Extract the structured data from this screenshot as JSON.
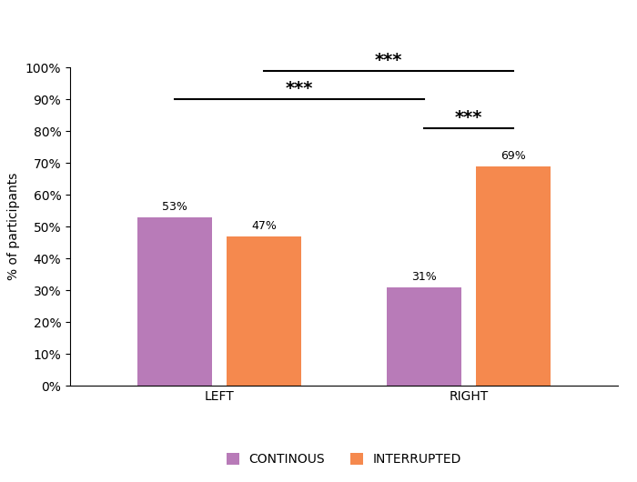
{
  "chart_data": {
    "type": "bar",
    "y_label": "% of participants",
    "categories": [
      "LEFT",
      "RIGHT"
    ],
    "series": [
      {
        "name": "CONTINOUS",
        "color": "#b87bb8",
        "values": [
          53,
          31
        ],
        "value_labels": [
          "53%",
          "31%"
        ]
      },
      {
        "name": "INTERRUPTED",
        "color": "#f5894e",
        "values": [
          47,
          69
        ],
        "value_labels": [
          "47%",
          "69%"
        ]
      }
    ],
    "ylim": [
      0,
      100
    ],
    "yticks": [
      {
        "value": 0,
        "label": "0%"
      },
      {
        "value": 10,
        "label": "10%"
      },
      {
        "value": 20,
        "label": "20%"
      },
      {
        "value": 30,
        "label": "30%"
      },
      {
        "value": 40,
        "label": "40%"
      },
      {
        "value": 50,
        "label": "50%"
      },
      {
        "value": 60,
        "label": "60%"
      },
      {
        "value": 70,
        "label": "70%"
      },
      {
        "value": 80,
        "label": "80%"
      },
      {
        "value": 90,
        "label": "90%"
      },
      {
        "value": 100,
        "label": "100%"
      }
    ],
    "grid": false,
    "data_labels": true,
    "legend": "bottom",
    "annotations": [
      {
        "text": "***",
        "between": [
          {
            "category": "RIGHT",
            "series": "CONTINOUS"
          },
          {
            "category": "RIGHT",
            "series": "INTERRUPTED"
          }
        ]
      },
      {
        "text": "***",
        "between": [
          {
            "category": "LEFT",
            "series": "CONTINOUS"
          },
          {
            "category": "RIGHT",
            "series": "CONTINOUS"
          }
        ]
      },
      {
        "text": "***",
        "between": [
          {
            "category": "LEFT",
            "series": "INTERRUPTED"
          },
          {
            "category": "RIGHT",
            "series": "INTERRUPTED"
          }
        ]
      }
    ]
  }
}
